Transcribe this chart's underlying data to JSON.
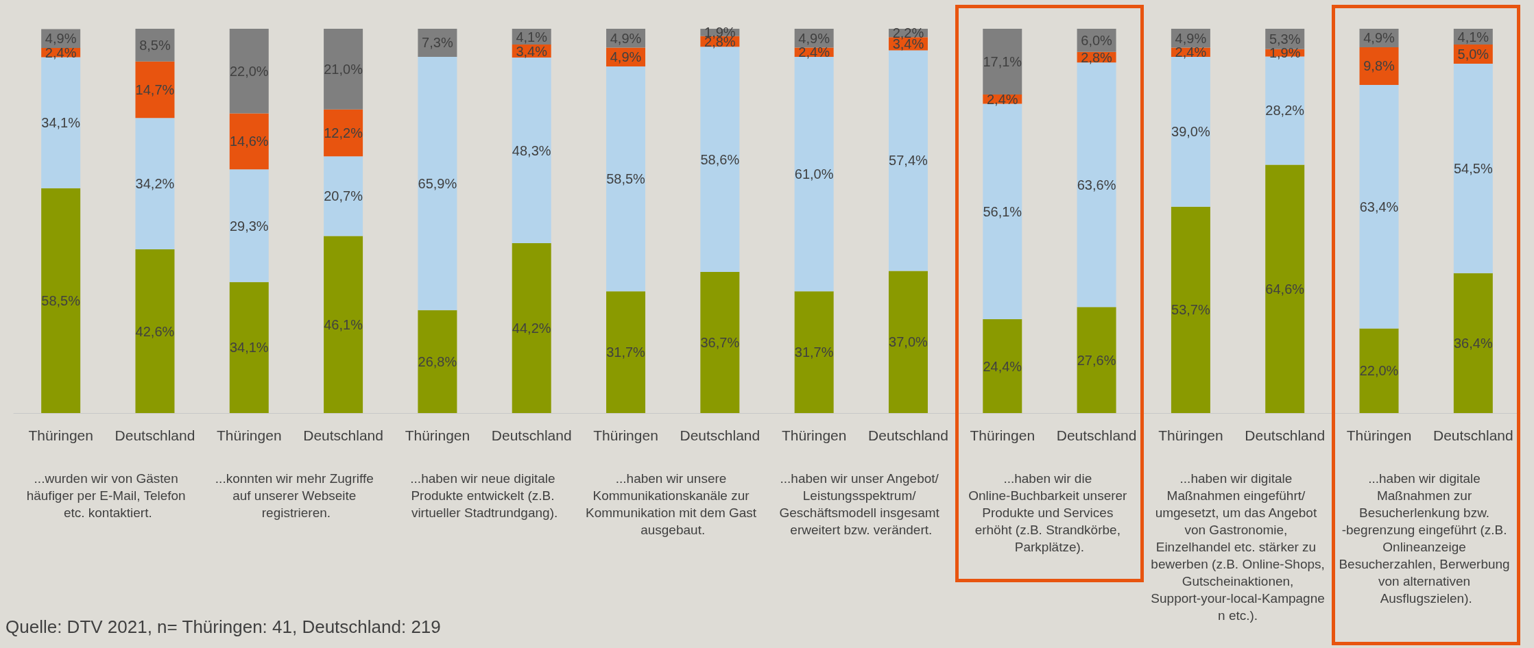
{
  "chart_data": {
    "type": "bar",
    "stacked": true,
    "ylim": [
      0,
      100
    ],
    "tick_labels": "x",
    "categories": [
      "Thüringen",
      "Deutschland",
      "Thüringen",
      "Deutschland",
      "Thüringen",
      "Deutschland",
      "Thüringen",
      "Deutschland",
      "Thüringen",
      "Deutschland",
      "Thüringen",
      "Deutschland",
      "Thüringen",
      "Deutschland",
      "Thüringen",
      "Deutschland"
    ],
    "series": [
      {
        "color": "#8a9a00",
        "values": [
          58.5,
          42.6,
          34.1,
          46.1,
          26.8,
          44.2,
          31.7,
          36.7,
          31.7,
          37.0,
          24.4,
          27.6,
          53.7,
          64.6,
          22.0,
          36.4
        ],
        "value_labels": [
          "58,5%",
          "42,6%",
          "34,1%",
          "46,1%",
          "26,8%",
          "44,2%",
          "31,7%",
          "36,7%",
          "31,7%",
          "37,0%",
          "24,4%",
          "27,6%",
          "53,7%",
          "64,6%",
          "22,0%",
          "36,4%"
        ]
      },
      {
        "color": "#b4d4ec",
        "values": [
          34.1,
          34.2,
          29.3,
          20.7,
          65.9,
          48.3,
          58.5,
          58.6,
          61.0,
          57.4,
          56.1,
          63.6,
          39.0,
          28.2,
          63.4,
          54.5
        ],
        "value_labels": [
          "34,1%",
          "34,2%",
          "29,3%",
          "20,7%",
          "65,9%",
          "48,3%",
          "58,5%",
          "58,6%",
          "61,0%",
          "57,4%",
          "56,1%",
          "63,6%",
          "39,0%",
          "28,2%",
          "63,4%",
          "54,5%"
        ]
      },
      {
        "color": "#e8540f",
        "values": [
          2.4,
          14.7,
          14.6,
          12.2,
          null,
          3.4,
          4.9,
          2.8,
          2.4,
          3.4,
          2.4,
          2.8,
          2.4,
          1.9,
          9.8,
          5.0
        ],
        "value_labels": [
          "2,4%",
          "14,7%",
          "14,6%",
          "12,2%",
          null,
          "3,4%",
          "4,9%",
          "2,8%",
          "2,4%",
          "3,4%",
          "2,4%",
          "2,8%",
          "2,4%",
          "1,9%",
          "9,8%",
          "5,0%"
        ]
      },
      {
        "color": "#7f7f7f",
        "values": [
          4.9,
          8.5,
          22.0,
          21.0,
          7.3,
          4.1,
          4.9,
          1.9,
          4.9,
          2.2,
          17.1,
          6.0,
          4.9,
          5.3,
          4.9,
          4.1
        ],
        "value_labels": [
          "4,9%",
          "8,5%",
          "22,0%",
          "21,0%",
          "7,3%",
          "4,1%",
          "4,9%",
          "1,9%",
          "4,9%",
          "2,2%",
          "17,1%",
          "6,0%",
          "4,9%",
          "5,3%",
          "4,9%",
          "4,1%"
        ]
      }
    ],
    "annotations": [
      "...wurden wir von Gästen häufiger per E-Mail, Telefon etc. kontaktiert.",
      "...konnten wir mehr Zugriffe auf unserer Webseite registrieren.",
      "...haben wir neue digitale Produkte entwickelt (z.B. virtueller Stadtrundgang).",
      "...haben wir unsere Kommunikationskanäle zur Kommunikation mit dem Gast ausgebaut.",
      "...haben wir unser Angebot/ Leistungsspektrum/ Geschäftsmodell insgesamt erweitert bzw. verändert.",
      "...haben wir die Online-Buchbarkeit unserer Produkte und Services erhöht (z.B. Strandkörbe, Parkplätze).",
      "...haben wir digitale Maßnahmen eingeführt/ umgesetzt, um das Angebot von Gastronomie, Einzelhandel etc. stärker zu bewerben (z.B. Online-Shops, Gutscheinaktionen, Support-your-local-Kampagnen etc.).",
      "...haben wir digitale Maßnahmen zur Besucherlenkung bzw. -begrenzung eingeführt (z.B. Onlineanzeige Besucherzahlen, Berwerbung von alternativen Ausflugszielen).",
      "Quelle: DTV 2021, n= Thüringen: 41, Deutschland: 219"
    ]
  }
}
